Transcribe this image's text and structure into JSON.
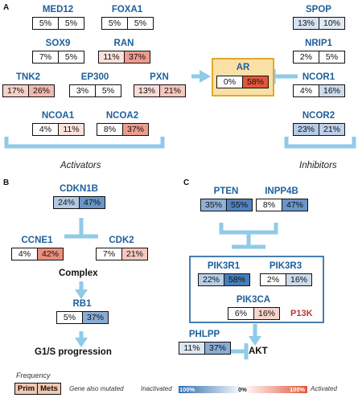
{
  "colors": {
    "arrow": "#8fcbe8",
    "inactivated": "#2f6db0",
    "activated": "#e2563b",
    "ar_fill": "#fbe0a6",
    "ar_border": "#e0a92c"
  },
  "panel_a": {
    "letter": "A",
    "activators_label": "Activators",
    "inhibitors_label": "Inhibitors",
    "ar": {
      "name": "AR",
      "prim": "0%",
      "mets": "58%"
    },
    "genes": [
      {
        "id": "MED12",
        "name": "MED12",
        "prim": "5%",
        "mets": "5%"
      },
      {
        "id": "FOXA1",
        "name": "FOXA1",
        "prim": "5%",
        "mets": "5%"
      },
      {
        "id": "SOX9",
        "name": "SOX9",
        "prim": "7%",
        "mets": "5%"
      },
      {
        "id": "RAN",
        "name": "RAN",
        "prim": "11%",
        "mets": "37%"
      },
      {
        "id": "TNK2",
        "name": "TNK2",
        "prim": "17%",
        "mets": "26%"
      },
      {
        "id": "EP300",
        "name": "EP300",
        "prim": "3%",
        "mets": "5%"
      },
      {
        "id": "PXN",
        "name": "PXN",
        "prim": "13%",
        "mets": "21%"
      },
      {
        "id": "NCOA1",
        "name": "NCOA1",
        "prim": "4%",
        "mets": "11%"
      },
      {
        "id": "NCOA2",
        "name": "NCOA2",
        "prim": "8%",
        "mets": "37%"
      },
      {
        "id": "SPOP",
        "name": "SPOP",
        "prim": "13%",
        "mets": "10%"
      },
      {
        "id": "NRIP1",
        "name": "NRIP1",
        "prim": "2%",
        "mets": "5%"
      },
      {
        "id": "NCOR1",
        "name": "NCOR1",
        "prim": "4%",
        "mets": "16%"
      },
      {
        "id": "NCOR2",
        "name": "NCOR2",
        "prim": "23%",
        "mets": "21%"
      }
    ]
  },
  "panel_b": {
    "letter": "B",
    "complex_label": "Complex",
    "progression_label": "G1/S progression",
    "genes": [
      {
        "id": "CDKN1B",
        "name": "CDKN1B",
        "prim": "24%",
        "mets": "47%"
      },
      {
        "id": "CCNE1",
        "name": "CCNE1",
        "prim": "4%",
        "mets": "42%"
      },
      {
        "id": "CDK2",
        "name": "CDK2",
        "prim": "7%",
        "mets": "21%"
      },
      {
        "id": "RB1",
        "name": "RB1",
        "prim": "5%",
        "mets": "37%"
      }
    ]
  },
  "panel_c": {
    "letter": "C",
    "p13k_label": "P13K",
    "akt_label": "AKT",
    "genes": [
      {
        "id": "PTEN",
        "name": "PTEN",
        "prim": "35%",
        "mets": "55%"
      },
      {
        "id": "INPP4B",
        "name": "INPP4B",
        "prim": "8%",
        "mets": "47%"
      },
      {
        "id": "PIK3R1",
        "name": "PIK3R1",
        "prim": "22%",
        "mets": "58%"
      },
      {
        "id": "PIK3R3",
        "name": "PIK3R3",
        "prim": "2%",
        "mets": "16%"
      },
      {
        "id": "PIK3CA",
        "name": "PIK3CA",
        "prim": "6%",
        "mets": "16%"
      },
      {
        "id": "PHLPP",
        "name": "PHLPP",
        "prim": "11%",
        "mets": "37%"
      }
    ]
  },
  "legend": {
    "frequency": "Frequency",
    "prim": "Prim",
    "mets": "Mets",
    "also_mutated": "Gene also mutated",
    "inactivated": "Inactivated",
    "inactivated_pct": "100%",
    "zero_pct": "0%",
    "activated_pct": "100%",
    "activated": "Activated"
  }
}
